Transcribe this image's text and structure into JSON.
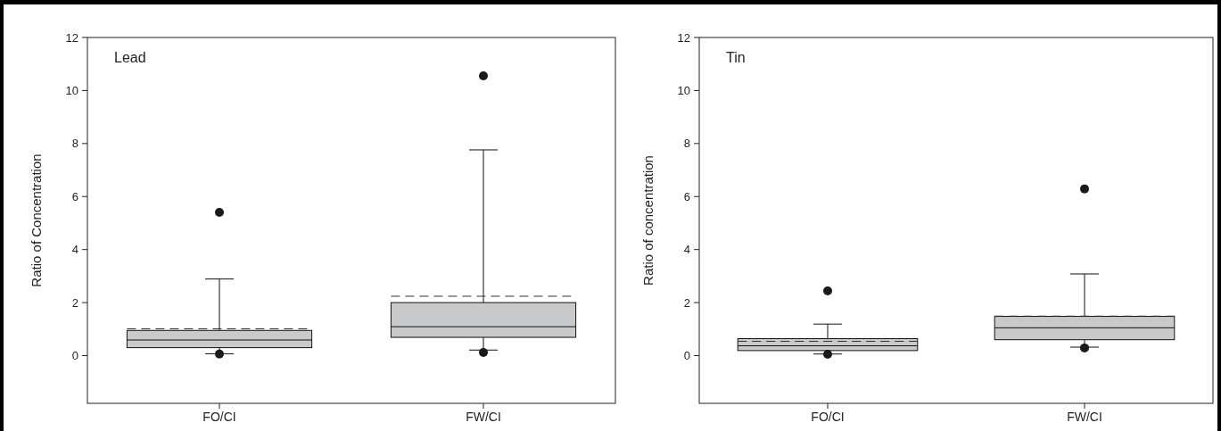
{
  "chart_data": [
    {
      "type": "box",
      "title": "Lead",
      "ylabel": "Ratio of Concentration",
      "categories": [
        "FO/CI",
        "FW/CI"
      ],
      "color": "#c8c9cb",
      "ylim": [
        -1.8,
        12
      ],
      "yticks": [
        0,
        2,
        4,
        6,
        8,
        10,
        12
      ],
      "boxes": [
        {
          "low": 0.07,
          "q1": 0.3,
          "median": 0.59,
          "q3": 0.95,
          "high": 2.89,
          "mean": 1.01,
          "outliers": [
            0.06,
            5.4
          ]
        },
        {
          "low": 0.21,
          "q1": 0.69,
          "median": 1.09,
          "q3": 2.0,
          "high": 7.76,
          "mean": 2.24,
          "outliers": [
            0.12,
            10.55
          ]
        }
      ]
    },
    {
      "type": "box",
      "title": "Tin",
      "ylabel": "Ratio of concentration",
      "categories": [
        "FO/CI",
        "FW/CI"
      ],
      "color": "#c8c9cb",
      "ylim": [
        -1.8,
        12
      ],
      "yticks": [
        0,
        2,
        4,
        6,
        8,
        10,
        12
      ],
      "boxes": [
        {
          "low": 0.06,
          "q1": 0.19,
          "median": 0.37,
          "q3": 0.64,
          "high": 1.19,
          "mean": 0.54,
          "outliers": [
            0.05,
            2.44
          ]
        },
        {
          "low": 0.32,
          "q1": 0.6,
          "median": 1.05,
          "q3": 1.48,
          "high": 3.08,
          "mean": 1.49,
          "outliers": [
            0.29,
            6.29
          ]
        }
      ]
    }
  ]
}
